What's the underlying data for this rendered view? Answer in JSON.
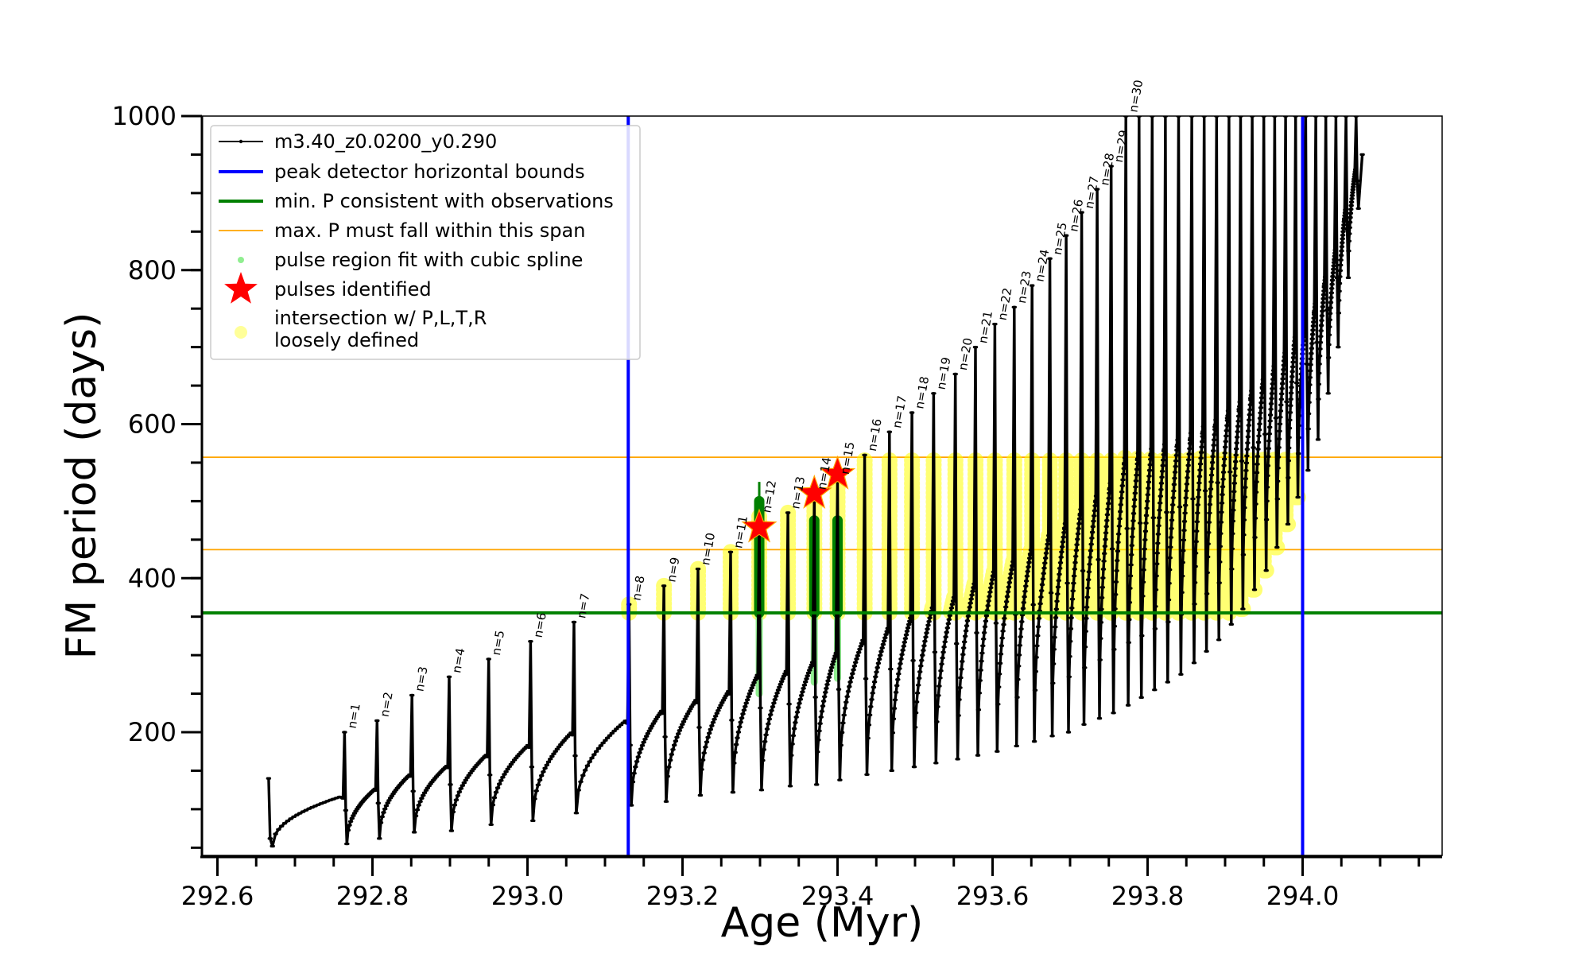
{
  "chart_data": {
    "type": "line",
    "title": "",
    "xlabel": "Age (Myr)",
    "ylabel": "FM period (days)",
    "xlim": [
      292.58,
      294.18
    ],
    "ylim": [
      40,
      1000
    ],
    "x_ticks": [
      292.6,
      292.8,
      293.0,
      293.2,
      293.4,
      293.6,
      293.8,
      294.0
    ],
    "x_tick_labels": [
      "292.6",
      "292.8",
      "293.0",
      "293.2",
      "293.4",
      "293.6",
      "293.8",
      "294.0"
    ],
    "x_minor_step": 0.05,
    "y_ticks": [
      200,
      400,
      600,
      800,
      1000
    ],
    "y_tick_labels": [
      "200",
      "400",
      "600",
      "800",
      "1000"
    ],
    "y_minor_step": 50,
    "grid": false,
    "legend_position": "top-left",
    "legend": [
      {
        "label": "m3.40_z0.0200_y0.290",
        "marker": "line-dot",
        "color": "#000000"
      },
      {
        "label": "peak detector horizontal bounds",
        "marker": "line",
        "color": "#0000ff"
      },
      {
        "label": "min. P consistent with observations",
        "marker": "line",
        "color": "#008000"
      },
      {
        "label": "max. P must fall within this span",
        "marker": "thin-line",
        "color": "#ffa500"
      },
      {
        "label": "pulse region fit with cubic spline",
        "marker": "dot",
        "color": "#90ee90"
      },
      {
        "label": "pulses identified",
        "marker": "star",
        "color": "#ff0000"
      },
      {
        "label": "intersection w/ P,L,T,R\nloosely defined",
        "marker": "big-dot",
        "color": "#ffff99"
      }
    ],
    "vertical_bounds": [
      293.13,
      294.0
    ],
    "min_period": 355,
    "max_period_span": [
      437,
      557
    ],
    "pulses": [
      {
        "label": "n=1",
        "age": 292.764,
        "p_min": 55,
        "p_max": 200
      },
      {
        "label": "n=2",
        "age": 292.806,
        "p_min": 62,
        "p_max": 215
      },
      {
        "label": "n=3",
        "age": 292.851,
        "p_min": 70,
        "p_max": 248
      },
      {
        "label": "n=4",
        "age": 292.899,
        "p_min": 72,
        "p_max": 272
      },
      {
        "label": "n=5",
        "age": 292.95,
        "p_min": 80,
        "p_max": 295
      },
      {
        "label": "n=6",
        "age": 293.004,
        "p_min": 85,
        "p_max": 318
      },
      {
        "label": "n=7",
        "age": 293.06,
        "p_min": 95,
        "p_max": 343
      },
      {
        "label": "n=8",
        "age": 293.131,
        "p_min": 105,
        "p_max": 366
      },
      {
        "label": "n=9",
        "age": 293.176,
        "p_min": 110,
        "p_max": 390
      },
      {
        "label": "n=10",
        "age": 293.22,
        "p_min": 118,
        "p_max": 412
      },
      {
        "label": "n=11",
        "age": 293.262,
        "p_min": 122,
        "p_max": 434
      },
      {
        "label": "n=12",
        "age": 293.299,
        "p_min": 125,
        "p_max": 480
      },
      {
        "label": "n=13",
        "age": 293.336,
        "p_min": 130,
        "p_max": 485
      },
      {
        "label": "n=14",
        "age": 293.37,
        "p_min": 132,
        "p_max": 510
      },
      {
        "label": "n=15",
        "age": 293.4,
        "p_min": 138,
        "p_max": 530
      },
      {
        "label": "n=16",
        "age": 293.435,
        "p_min": 145,
        "p_max": 560
      },
      {
        "label": "n=17",
        "age": 293.467,
        "p_min": 150,
        "p_max": 590
      },
      {
        "label": "n=18",
        "age": 293.496,
        "p_min": 155,
        "p_max": 615
      },
      {
        "label": "n=19",
        "age": 293.524,
        "p_min": 160,
        "p_max": 640
      },
      {
        "label": "n=20",
        "age": 293.552,
        "p_min": 165,
        "p_max": 665
      },
      {
        "label": "n=21",
        "age": 293.578,
        "p_min": 170,
        "p_max": 700
      },
      {
        "label": "n=22",
        "age": 293.603,
        "p_min": 175,
        "p_max": 730
      },
      {
        "label": "n=23",
        "age": 293.628,
        "p_min": 182,
        "p_max": 752
      },
      {
        "label": "n=24",
        "age": 293.651,
        "p_min": 188,
        "p_max": 780
      },
      {
        "label": "n=25",
        "age": 293.674,
        "p_min": 195,
        "p_max": 815
      },
      {
        "label": "n=26",
        "age": 293.695,
        "p_min": 200,
        "p_max": 845
      },
      {
        "label": "n=27",
        "age": 293.715,
        "p_min": 210,
        "p_max": 875
      },
      {
        "label": "n=28",
        "age": 293.735,
        "p_min": 218,
        "p_max": 905
      },
      {
        "label": "n=29",
        "age": 293.753,
        "p_min": 225,
        "p_max": 935
      },
      {
        "label": "n=30",
        "age": 293.772,
        "p_min": 235,
        "p_max": 1000
      },
      {
        "label": "",
        "age": 293.789,
        "p_min": 245,
        "p_max": 1000
      },
      {
        "label": "",
        "age": 293.806,
        "p_min": 255,
        "p_max": 1000
      },
      {
        "label": "",
        "age": 293.823,
        "p_min": 265,
        "p_max": 1000
      },
      {
        "label": "",
        "age": 293.84,
        "p_min": 275,
        "p_max": 1000
      },
      {
        "label": "",
        "age": 293.857,
        "p_min": 290,
        "p_max": 1000
      },
      {
        "label": "",
        "age": 293.873,
        "p_min": 305,
        "p_max": 1000
      },
      {
        "label": "",
        "age": 293.889,
        "p_min": 320,
        "p_max": 1000
      },
      {
        "label": "",
        "age": 293.905,
        "p_min": 340,
        "p_max": 1000
      },
      {
        "label": "",
        "age": 293.92,
        "p_min": 360,
        "p_max": 1000
      },
      {
        "label": "",
        "age": 293.935,
        "p_min": 385,
        "p_max": 1000
      },
      {
        "label": "",
        "age": 293.95,
        "p_min": 410,
        "p_max": 1000
      },
      {
        "label": "",
        "age": 293.964,
        "p_min": 440,
        "p_max": 1000
      },
      {
        "label": "",
        "age": 293.978,
        "p_min": 470,
        "p_max": 1000
      },
      {
        "label": "",
        "age": 293.991,
        "p_min": 505,
        "p_max": 1000
      },
      {
        "label": "",
        "age": 294.004,
        "p_min": 540,
        "p_max": 1000
      },
      {
        "label": "",
        "age": 294.017,
        "p_min": 580,
        "p_max": 1000
      },
      {
        "label": "",
        "age": 294.03,
        "p_min": 640,
        "p_max": 1000
      },
      {
        "label": "",
        "age": 294.043,
        "p_min": 700,
        "p_max": 1000
      },
      {
        "label": "",
        "age": 294.056,
        "p_min": 790,
        "p_max": 1000
      },
      {
        "label": "",
        "age": 294.069,
        "p_min": 880,
        "p_max": 1000
      }
    ],
    "series_start": {
      "age": 292.666,
      "period": 140
    },
    "spline_pulses": [
      {
        "age": 293.299,
        "p_low": 250,
        "p_high": 525
      },
      {
        "age": 293.37,
        "p_low": 265,
        "p_high": 500
      },
      {
        "age": 293.4,
        "p_low": 270,
        "p_high": 500
      }
    ],
    "identified_pulses": [
      {
        "age": 293.299,
        "period": 466
      },
      {
        "age": 293.37,
        "period": 510
      },
      {
        "age": 293.4,
        "period": 535
      }
    ],
    "loosely_defined_region": {
      "p_low": 355,
      "p_high": 557
    }
  }
}
